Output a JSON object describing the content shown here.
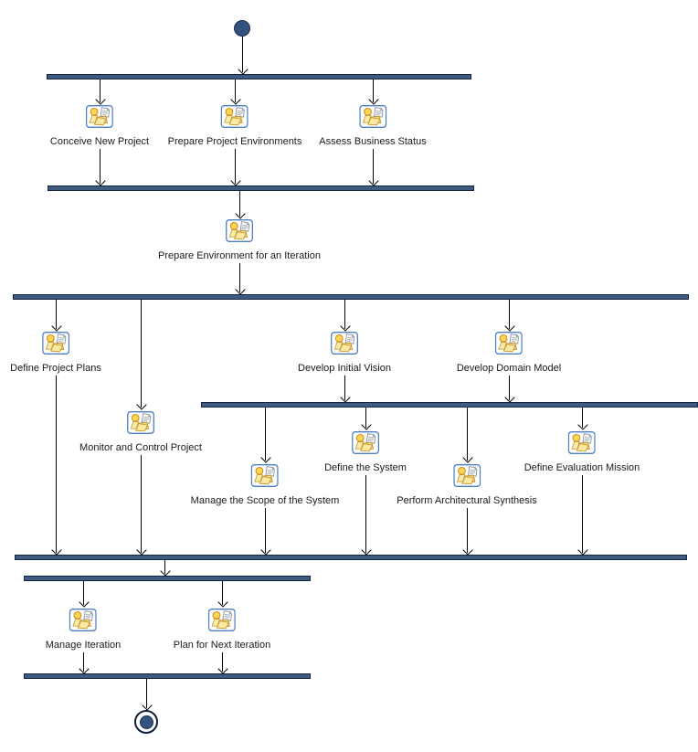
{
  "diagram": {
    "type": "uml-activity-diagram",
    "background_color": "#FFFFFF",
    "colors": {
      "bar_fill": "#3E5C80",
      "bar_border": "#16253F",
      "node_fill": "#33527E",
      "node_border": "#1B2D4B",
      "edge": "#000000",
      "label": "#1A1A1A",
      "icon_border_blue": "#4D80C0",
      "icon_yellow": "#FAE9A2",
      "icon_head_yellow": "#FFD651",
      "icon_stroke_orange": "#C8881E"
    },
    "nodes": {
      "initial": "initial-node",
      "final": "activity-final-node"
    },
    "bars": [
      {
        "id": "fork-1",
        "kind": "fork"
      },
      {
        "id": "join-1",
        "kind": "join"
      },
      {
        "id": "fork-2",
        "kind": "fork"
      },
      {
        "id": "fork-3",
        "kind": "fork"
      },
      {
        "id": "join-2",
        "kind": "join"
      },
      {
        "id": "fork-4",
        "kind": "fork"
      },
      {
        "id": "join-3",
        "kind": "join"
      }
    ],
    "activities": [
      {
        "id": "conceive-new-project",
        "label": "Conceive New Project"
      },
      {
        "id": "prepare-project-environments",
        "label": "Prepare Project Environments"
      },
      {
        "id": "assess-business-status",
        "label": "Assess Business Status"
      },
      {
        "id": "prepare-environment-for-an-iteration",
        "label": "Prepare Environment for an Iteration"
      },
      {
        "id": "define-project-plans",
        "label": "Define Project Plans"
      },
      {
        "id": "monitor-and-control-project",
        "label": "Monitor and Control Project"
      },
      {
        "id": "develop-initial-vision",
        "label": "Develop Initial Vision"
      },
      {
        "id": "develop-domain-model",
        "label": "Develop Domain Model"
      },
      {
        "id": "manage-the-scope-of-the-system",
        "label": "Manage the Scope of the System"
      },
      {
        "id": "define-the-system",
        "label": "Define the System"
      },
      {
        "id": "perform-architectural-synthesis",
        "label": "Perform Architectural Synthesis"
      },
      {
        "id": "define-evaluation-mission",
        "label": "Define Evaluation Mission"
      },
      {
        "id": "manage-iteration",
        "label": "Manage Iteration"
      },
      {
        "id": "plan-for-next-iteration",
        "label": "Plan for Next Iteration"
      }
    ],
    "structure": [
      {
        "from": "initial",
        "to": "fork-1"
      },
      {
        "fork-1": [
          "conceive-new-project",
          "prepare-project-environments",
          "assess-business-status"
        ],
        "join": "join-1"
      },
      {
        "from": "join-1",
        "through": "prepare-environment-for-an-iteration",
        "to": "fork-2"
      },
      {
        "fork-2": [
          "define-project-plans",
          "monitor-and-control-project",
          "develop-initial-vision",
          "develop-domain-model"
        ]
      },
      {
        "fork-3": [
          "manage-the-scope-of-the-system",
          "define-the-system",
          "perform-architectural-synthesis",
          "define-evaluation-mission"
        ],
        "join": "join-2"
      },
      {
        "from": "join-2",
        "to": "fork-4"
      },
      {
        "fork-4": [
          "manage-iteration",
          "plan-for-next-iteration"
        ],
        "join": "join-3"
      },
      {
        "from": "join-3",
        "to": "final"
      }
    ]
  }
}
